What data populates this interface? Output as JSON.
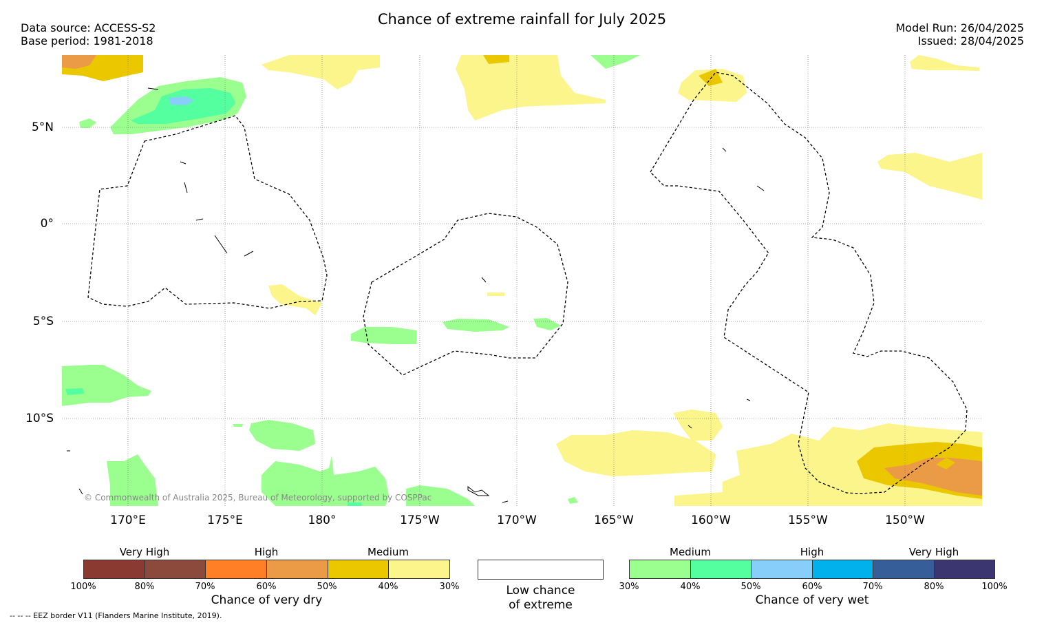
{
  "title": "Chance of extreme rainfall for July 2025",
  "meta": {
    "data_source": "Data source: ACCESS-S2",
    "base_period": "Base period: 1981-2018",
    "model_run": "Model Run: 26/04/2025",
    "issued": "Issued: 28/04/2025"
  },
  "map": {
    "lat_labels": [
      "5°N",
      "0°",
      "5°S",
      "10°S"
    ],
    "lon_labels": [
      "170°E",
      "175°E",
      "180°",
      "175°W",
      "170°W",
      "165°W",
      "160°W",
      "155°W",
      "150°W"
    ],
    "copyright": "© Commonwealth of Australia 2025, Bureau of Meteorology, supported by COSPPac"
  },
  "legend": {
    "dry": {
      "categories": [
        "Very High",
        "High",
        "Medium"
      ],
      "ticks": [
        "100%",
        "80%",
        "70%",
        "60%",
        "50%",
        "40%",
        "30%"
      ],
      "colors": [
        "#8b3a32",
        "#8b4a3c",
        "#ff7f27",
        "#eb9a46",
        "#ebc700",
        "#fcf58b"
      ],
      "title": "Chance of very dry"
    },
    "neutral": {
      "line1": "Low chance",
      "line2": "of extreme"
    },
    "wet": {
      "categories": [
        "Medium",
        "High",
        "Very High"
      ],
      "ticks": [
        "30%",
        "40%",
        "50%",
        "60%",
        "70%",
        "80%",
        "100%"
      ],
      "colors": [
        "#9aff8e",
        "#54ff9f",
        "#87cefa",
        "#00b1eb",
        "#365f99",
        "#3b3670"
      ],
      "title": "Chance of very wet"
    },
    "eez_note": "-- -- -- EEZ border V11 (Flanders Marine Institute, 2019)."
  }
}
